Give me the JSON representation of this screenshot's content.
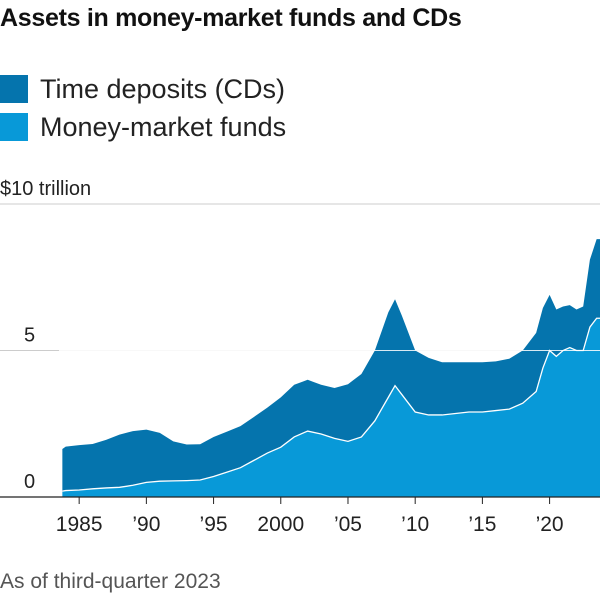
{
  "title": "Assets in money-market funds and CDs",
  "footnote": "As of third-quarter 2023",
  "colors": {
    "time_deposits": "#0574ad",
    "money_market": "#0899d8",
    "gridline": "#cccccc",
    "baseline": "#222222",
    "money_market_edge": "#ffffff"
  },
  "chart_data": {
    "type": "area",
    "stacked": true,
    "title": "Assets in money-market funds and CDs",
    "xlabel": "",
    "ylabel": "",
    "xlim": [
      1983.5,
      2023.75
    ],
    "ylim": [
      0,
      10
    ],
    "y_ticks": [
      {
        "value": 10,
        "label": "$10 trillion"
      },
      {
        "value": 5,
        "label": "5"
      },
      {
        "value": 0,
        "label": "0"
      }
    ],
    "x_ticks": [
      {
        "value": 1985,
        "label": "1985"
      },
      {
        "value": 1990,
        "label": "’90"
      },
      {
        "value": 1995,
        "label": "’95"
      },
      {
        "value": 2000,
        "label": "2000"
      },
      {
        "value": 2005,
        "label": "’05"
      },
      {
        "value": 2010,
        "label": "’10"
      },
      {
        "value": 2015,
        "label": "’15"
      },
      {
        "value": 2020,
        "label": "’20"
      }
    ],
    "grid": true,
    "legend_position": "top-left",
    "series": [
      {
        "name": "Time deposits (CDs)",
        "color": "#0574ad",
        "points": [
          [
            1983.75,
            1.44
          ],
          [
            1984,
            1.5
          ],
          [
            1985,
            1.53
          ],
          [
            1986,
            1.53
          ],
          [
            1987,
            1.64
          ],
          [
            1988,
            1.8
          ],
          [
            1989,
            1.85
          ],
          [
            1990,
            1.8
          ],
          [
            1991,
            1.65
          ],
          [
            1992,
            1.35
          ],
          [
            1993,
            1.23
          ],
          [
            1994,
            1.22
          ],
          [
            1995,
            1.35
          ],
          [
            1996,
            1.38
          ],
          [
            1997,
            1.42
          ],
          [
            1998,
            1.48
          ],
          [
            1999,
            1.55
          ],
          [
            2000,
            1.7
          ],
          [
            2001,
            1.78
          ],
          [
            2002,
            1.75
          ],
          [
            2003,
            1.68
          ],
          [
            2004,
            1.72
          ],
          [
            2005,
            1.95
          ],
          [
            2006,
            2.15
          ],
          [
            2007,
            2.4
          ],
          [
            2008,
            2.9
          ],
          [
            2008.5,
            2.95
          ],
          [
            2009,
            2.7
          ],
          [
            2010,
            2.1
          ],
          [
            2011,
            1.95
          ],
          [
            2012,
            1.8
          ],
          [
            2013,
            1.75
          ],
          [
            2014,
            1.7
          ],
          [
            2015,
            1.7
          ],
          [
            2016,
            1.68
          ],
          [
            2017,
            1.72
          ],
          [
            2018,
            1.8
          ],
          [
            2019,
            2.0
          ],
          [
            2019.5,
            2.05
          ],
          [
            2020,
            1.9
          ],
          [
            2020.5,
            1.6
          ],
          [
            2021,
            1.5
          ],
          [
            2021.5,
            1.45
          ],
          [
            2022,
            1.4
          ],
          [
            2022.5,
            1.5
          ],
          [
            2023,
            2.3
          ],
          [
            2023.5,
            2.7
          ],
          [
            2023.75,
            2.7
          ]
        ]
      },
      {
        "name": "Money-market funds",
        "color": "#0899d8",
        "points": [
          [
            1983.75,
            0.2
          ],
          [
            1984,
            0.22
          ],
          [
            1985,
            0.24
          ],
          [
            1986,
            0.28
          ],
          [
            1987,
            0.31
          ],
          [
            1988,
            0.33
          ],
          [
            1989,
            0.4
          ],
          [
            1990,
            0.5
          ],
          [
            1991,
            0.54
          ],
          [
            1992,
            0.55
          ],
          [
            1993,
            0.56
          ],
          [
            1994,
            0.58
          ],
          [
            1995,
            0.7
          ],
          [
            1996,
            0.85
          ],
          [
            1997,
            1.0
          ],
          [
            1998,
            1.25
          ],
          [
            1999,
            1.5
          ],
          [
            2000,
            1.7
          ],
          [
            2001,
            2.05
          ],
          [
            2002,
            2.25
          ],
          [
            2003,
            2.15
          ],
          [
            2004,
            2.0
          ],
          [
            2005,
            1.9
          ],
          [
            2006,
            2.05
          ],
          [
            2007,
            2.6
          ],
          [
            2008,
            3.4
          ],
          [
            2008.5,
            3.8
          ],
          [
            2009,
            3.5
          ],
          [
            2010,
            2.9
          ],
          [
            2011,
            2.8
          ],
          [
            2012,
            2.8
          ],
          [
            2013,
            2.85
          ],
          [
            2014,
            2.9
          ],
          [
            2015,
            2.9
          ],
          [
            2016,
            2.95
          ],
          [
            2017,
            3.0
          ],
          [
            2018,
            3.2
          ],
          [
            2019,
            3.6
          ],
          [
            2019.5,
            4.4
          ],
          [
            2020,
            5.0
          ],
          [
            2020.5,
            4.8
          ],
          [
            2021,
            5.0
          ],
          [
            2021.5,
            5.1
          ],
          [
            2022,
            5.0
          ],
          [
            2022.5,
            5.0
          ],
          [
            2023,
            5.8
          ],
          [
            2023.5,
            6.1
          ],
          [
            2023.75,
            6.1
          ]
        ]
      }
    ]
  },
  "legend": {
    "items": [
      {
        "label": "Time deposits (CDs)"
      },
      {
        "label": "Money-market funds"
      }
    ]
  }
}
